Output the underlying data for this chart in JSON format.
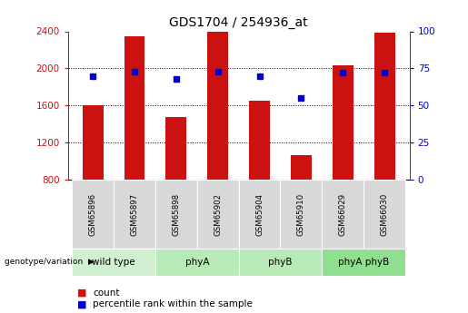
{
  "title": "GDS1704 / 254936_at",
  "samples": [
    "GSM65896",
    "GSM65897",
    "GSM65898",
    "GSM65902",
    "GSM65904",
    "GSM65910",
    "GSM66029",
    "GSM66030"
  ],
  "counts": [
    1600,
    2350,
    1480,
    2400,
    1650,
    1070,
    2030,
    2390
  ],
  "percentiles": [
    70,
    73,
    68,
    73,
    70,
    55,
    72,
    72
  ],
  "ylim_left": [
    800,
    2400
  ],
  "ylim_right": [
    0,
    100
  ],
  "yticks_left": [
    800,
    1200,
    1600,
    2000,
    2400
  ],
  "yticks_right": [
    0,
    25,
    50,
    75,
    100
  ],
  "groups": [
    {
      "label": "wild type",
      "indices": [
        0,
        1
      ]
    },
    {
      "label": "phyA",
      "indices": [
        2,
        3
      ]
    },
    {
      "label": "phyB",
      "indices": [
        4,
        5
      ]
    },
    {
      "label": "phyA phyB",
      "indices": [
        6,
        7
      ]
    }
  ],
  "bar_color": "#cc1111",
  "marker_color": "#0000cc",
  "bar_bottom": 800,
  "bar_width": 0.5,
  "title_fontsize": 10,
  "tick_label_color_left": "#cc1111",
  "tick_label_color_right": "#0000cc",
  "legend_label_count": "count",
  "legend_label_percentile": "percentile rank within the sample",
  "group_label_row_label": "genotype/variation",
  "sample_box_color": "#d8d8d8",
  "group_colors": [
    "#d0f0d0",
    "#b8eab8",
    "#b8eab8",
    "#90de90"
  ],
  "plot_bg": "#ffffff"
}
